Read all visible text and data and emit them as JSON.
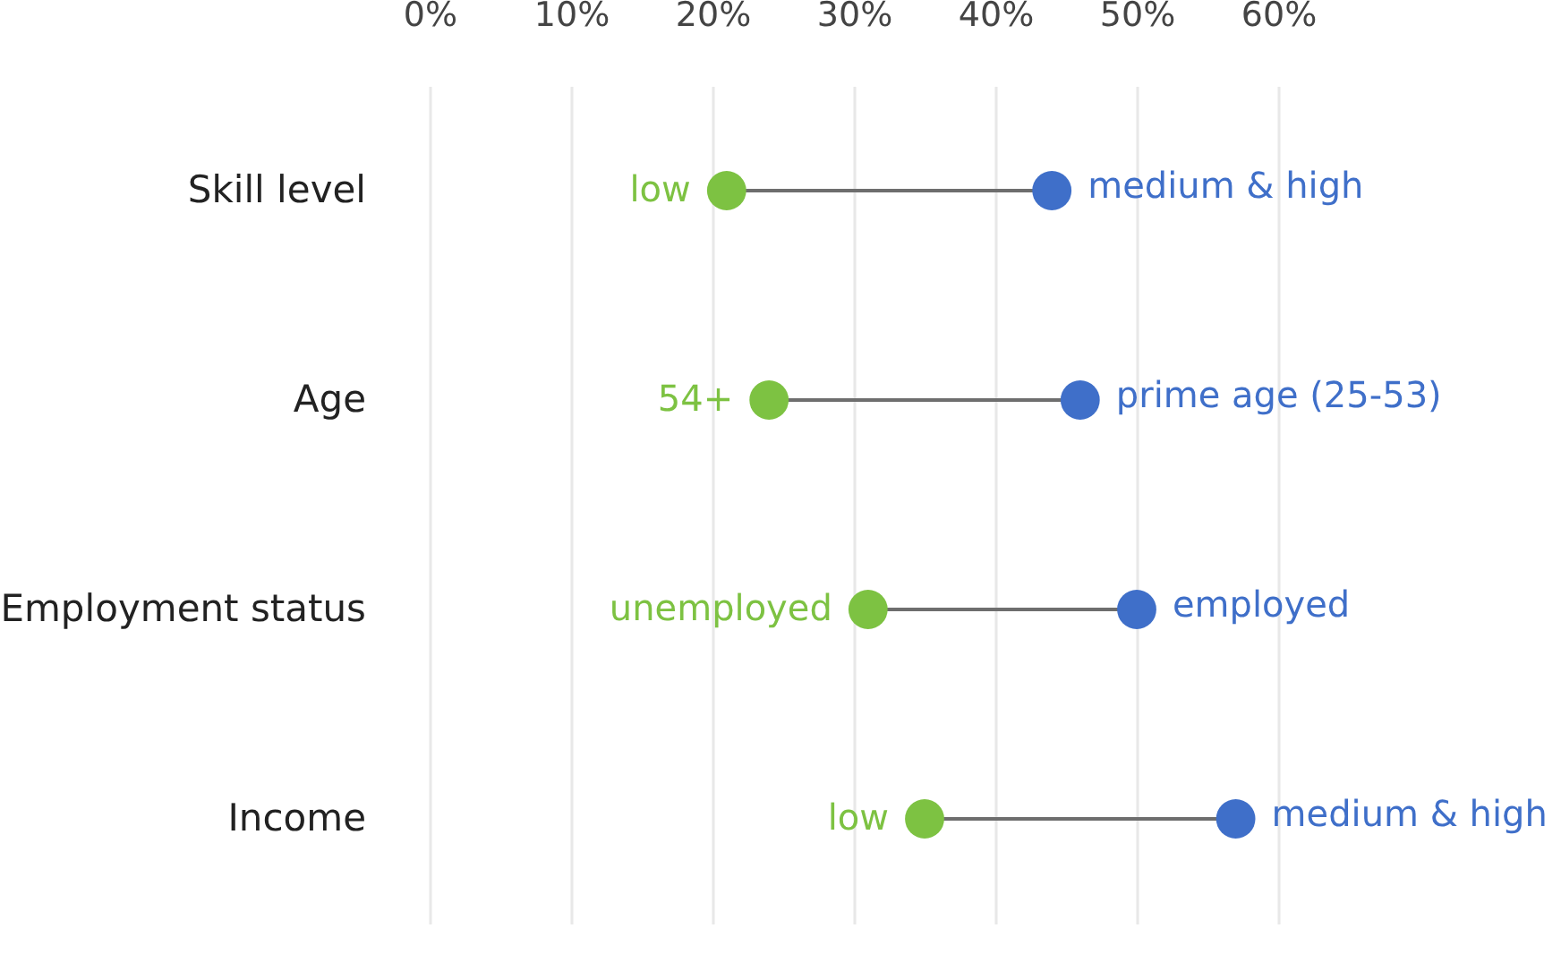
{
  "chart_data": {
    "type": "scatter",
    "orientation": "horizontal",
    "categories": [
      "Skill level",
      "Age",
      "Employment status",
      "Income"
    ],
    "series": [
      {
        "color": "#7dc242",
        "values": [
          21,
          24,
          31,
          35
        ]
      },
      {
        "color": "#3f6fc9",
        "values": [
          44,
          46,
          50,
          57
        ]
      }
    ],
    "xlim": [
      0,
      60
    ],
    "xticks": [
      {
        "value": 0,
        "label": "0%"
      },
      {
        "value": 10,
        "label": "10%"
      },
      {
        "value": 20,
        "label": "20%"
      },
      {
        "value": 30,
        "label": "30%"
      },
      {
        "value": 40,
        "label": "40%"
      },
      {
        "value": 50,
        "label": "50%"
      },
      {
        "value": 60,
        "label": "60%"
      }
    ],
    "grid": "x",
    "marker": "circle",
    "annotations": [
      {
        "text": "low",
        "x": 21,
        "y": "Skill level"
      },
      {
        "text": "medium & high",
        "x": 44,
        "y": "Skill level"
      },
      {
        "text": "54+",
        "x": 24,
        "y": "Age"
      },
      {
        "text": "prime age (25-53)",
        "x": 46,
        "y": "Age"
      },
      {
        "text": "unemployed",
        "x": 31,
        "y": "Employment status"
      },
      {
        "text": "employed",
        "x": 50,
        "y": "Employment status"
      },
      {
        "text": "low",
        "x": 35,
        "y": "Income"
      },
      {
        "text": "medium & high",
        "x": 57,
        "y": "Income"
      }
    ]
  }
}
